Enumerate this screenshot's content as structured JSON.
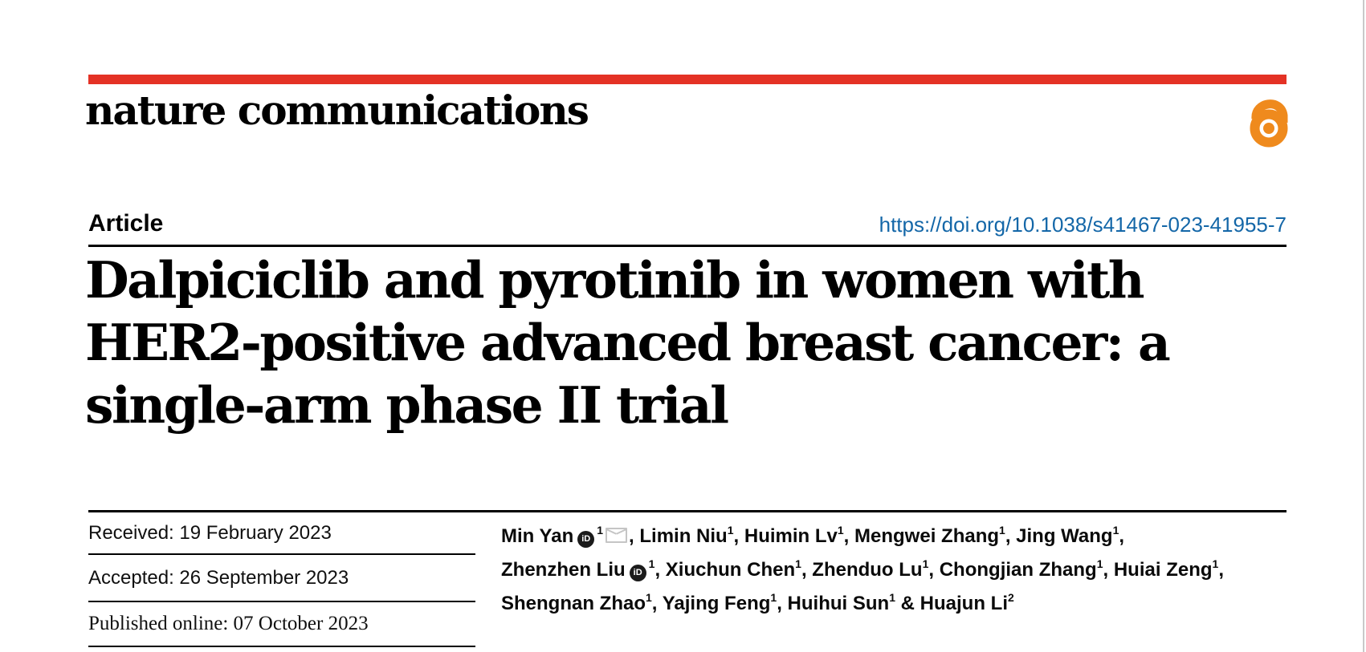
{
  "brand": {
    "logo_text": "nature communications",
    "open_access_icon": "open-access-padlock-icon"
  },
  "colors": {
    "accent_red": "#e43225",
    "open_access_orange": "#ef8a1d",
    "doi_blue": "#1467a8"
  },
  "article": {
    "type_label": "Article",
    "doi": "https://doi.org/10.1038/s41467-023-41955-7",
    "title_lines": [
      "Dalpiciclib and pyrotinib in women with",
      "HER2-positive advanced breast cancer: a",
      "single-arm phase II trial"
    ]
  },
  "dates": [
    {
      "label": "Received",
      "value": "19 February 2023",
      "text": "Received: 19 February 2023"
    },
    {
      "label": "Accepted",
      "value": "26 September 2023",
      "text": "Accepted: 26 September 2023"
    },
    {
      "label": "Published online",
      "value": "07 October 2023",
      "text": "Published online: 07 October 2023"
    }
  ],
  "authors": {
    "lines": [
      [
        {
          "name": "Min Yan",
          "orcid": true,
          "sup": "1",
          "email": true,
          "trail": ", "
        },
        {
          "name": "Limin Niu",
          "sup": "1",
          "trail": ", "
        },
        {
          "name": "Huimin Lv",
          "sup": "1",
          "trail": ", "
        },
        {
          "name": "Mengwei Zhang",
          "sup": "1",
          "trail": ", "
        },
        {
          "name": "Jing Wang",
          "sup": "1",
          "trail": ","
        }
      ],
      [
        {
          "name": "Zhenzhen Liu",
          "orcid": true,
          "sup": "1",
          "trail": ", "
        },
        {
          "name": "Xiuchun Chen",
          "sup": "1",
          "trail": ", "
        },
        {
          "name": "Zhenduo Lu",
          "sup": "1",
          "trail": ", "
        },
        {
          "name": "Chongjian Zhang",
          "sup": "1",
          "trail": ", "
        },
        {
          "name": "Huiai Zeng",
          "sup": "1",
          "trail": ","
        }
      ],
      [
        {
          "name": "Shengnan Zhao",
          "sup": "1",
          "trail": ", "
        },
        {
          "name": "Yajing Feng",
          "sup": "1",
          "trail": ", "
        },
        {
          "name": "Huihui Sun",
          "sup": "1",
          "trail": " & "
        },
        {
          "name": "Huajun Li",
          "sup": "2",
          "trail": ""
        }
      ]
    ],
    "orcid_icon_label": "iD"
  }
}
